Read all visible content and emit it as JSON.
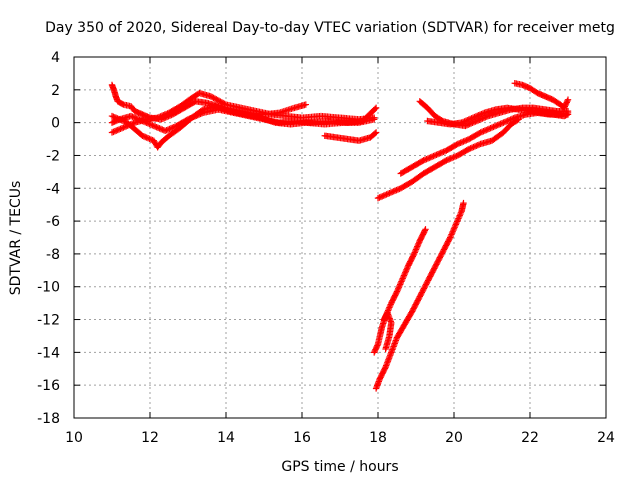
{
  "chart_data": {
    "type": "scatter",
    "title": "Day 350 of 2020, Sidereal Day-to-day VTEC variation (SDTVAR) for receiver metg",
    "xlabel": "GPS time / hours",
    "ylabel": "SDTVAR / TECUs",
    "xlim": [
      10,
      24
    ],
    "ylim": [
      -18,
      4
    ],
    "xticks": [
      10,
      12,
      14,
      16,
      18,
      20,
      22,
      24
    ],
    "yticks": [
      -18,
      -16,
      -14,
      -12,
      -10,
      -8,
      -6,
      -4,
      -2,
      0,
      2,
      4
    ],
    "grid": true,
    "marker": "+",
    "color": "#ff0000",
    "series": [
      {
        "points": [
          [
            11.0,
            2.3
          ],
          [
            11.05,
            2.0
          ],
          [
            11.1,
            1.6
          ],
          [
            11.15,
            1.3
          ],
          [
            11.3,
            1.1
          ],
          [
            11.5,
            1.0
          ],
          [
            11.6,
            0.7
          ],
          [
            11.8,
            0.5
          ],
          [
            12.0,
            0.3
          ],
          [
            12.3,
            0.2
          ],
          [
            12.6,
            0.5
          ],
          [
            12.9,
            0.9
          ],
          [
            13.2,
            1.3
          ],
          [
            13.5,
            1.2
          ],
          [
            13.8,
            1.0
          ],
          [
            14.2,
            0.8
          ],
          [
            14.6,
            0.6
          ],
          [
            15.0,
            0.5
          ],
          [
            15.4,
            0.6
          ],
          [
            15.8,
            0.9
          ],
          [
            16.1,
            1.1
          ]
        ]
      },
      {
        "points": [
          [
            11.0,
            -0.6
          ],
          [
            11.3,
            -0.3
          ],
          [
            11.6,
            0.0
          ],
          [
            11.9,
            0.2
          ],
          [
            12.2,
            0.3
          ],
          [
            12.5,
            0.6
          ],
          [
            12.8,
            1.0
          ],
          [
            13.1,
            1.5
          ],
          [
            13.3,
            1.8
          ],
          [
            13.6,
            1.6
          ],
          [
            14.0,
            1.1
          ],
          [
            14.4,
            0.9
          ],
          [
            14.8,
            0.7
          ],
          [
            15.2,
            0.5
          ],
          [
            15.6,
            0.4
          ],
          [
            16.0,
            0.3
          ],
          [
            16.5,
            0.4
          ],
          [
            17.0,
            0.3
          ],
          [
            17.5,
            0.2
          ],
          [
            17.9,
            0.3
          ]
        ]
      },
      {
        "points": [
          [
            11.0,
            0.0
          ],
          [
            11.2,
            0.2
          ],
          [
            11.5,
            0.4
          ],
          [
            11.8,
            0.1
          ],
          [
            12.1,
            -0.2
          ],
          [
            12.4,
            -0.5
          ],
          [
            12.7,
            -0.2
          ],
          [
            13.0,
            0.2
          ],
          [
            13.4,
            0.6
          ],
          [
            13.8,
            0.8
          ],
          [
            14.2,
            0.6
          ],
          [
            14.6,
            0.4
          ],
          [
            15.0,
            0.2
          ],
          [
            15.4,
            0.0
          ],
          [
            15.8,
            0.1
          ],
          [
            16.2,
            0.0
          ],
          [
            16.7,
            0.1
          ],
          [
            17.2,
            0.0
          ],
          [
            17.6,
            0.1
          ],
          [
            17.95,
            0.9
          ]
        ]
      },
      {
        "points": [
          [
            11.0,
            0.4
          ],
          [
            11.4,
            0.0
          ],
          [
            11.8,
            -0.8
          ],
          [
            12.1,
            -1.1
          ],
          [
            12.2,
            -1.5
          ],
          [
            12.3,
            -1.2
          ],
          [
            12.5,
            -0.8
          ],
          [
            12.8,
            -0.3
          ],
          [
            13.1,
            0.3
          ],
          [
            13.4,
            0.8
          ],
          [
            13.7,
            1.0
          ],
          [
            14.1,
            0.7
          ],
          [
            14.5,
            0.5
          ],
          [
            14.9,
            0.3
          ],
          [
            15.3,
            0.0
          ],
          [
            15.7,
            -0.1
          ],
          [
            16.1,
            0.0
          ],
          [
            16.6,
            -0.1
          ],
          [
            17.1,
            0.0
          ],
          [
            17.5,
            0.0
          ],
          [
            17.9,
            0.2
          ]
        ]
      },
      {
        "points": [
          [
            16.6,
            -0.8
          ],
          [
            16.9,
            -0.9
          ],
          [
            17.2,
            -1.0
          ],
          [
            17.5,
            -1.1
          ],
          [
            17.8,
            -0.9
          ],
          [
            17.95,
            -0.6
          ]
        ]
      },
      {
        "points": [
          [
            18.0,
            -4.6
          ],
          [
            18.3,
            -4.3
          ],
          [
            18.6,
            -4.0
          ],
          [
            18.9,
            -3.6
          ],
          [
            19.2,
            -3.1
          ],
          [
            19.5,
            -2.7
          ],
          [
            19.8,
            -2.3
          ],
          [
            20.1,
            -2.0
          ],
          [
            20.4,
            -1.6
          ],
          [
            20.7,
            -1.3
          ],
          [
            21.0,
            -1.1
          ],
          [
            21.3,
            -0.6
          ],
          [
            21.5,
            -0.1
          ],
          [
            21.7,
            0.2
          ]
        ]
      },
      {
        "points": [
          [
            18.6,
            -3.1
          ],
          [
            18.9,
            -2.7
          ],
          [
            19.2,
            -2.3
          ],
          [
            19.5,
            -2.0
          ],
          [
            19.8,
            -1.7
          ],
          [
            20.1,
            -1.3
          ],
          [
            20.4,
            -1.0
          ],
          [
            20.7,
            -0.6
          ],
          [
            21.0,
            -0.3
          ],
          [
            21.3,
            0.0
          ],
          [
            21.6,
            0.3
          ],
          [
            21.9,
            0.5
          ],
          [
            22.2,
            0.6
          ],
          [
            22.5,
            0.5
          ],
          [
            22.8,
            0.5
          ],
          [
            23.0,
            0.6
          ]
        ]
      },
      {
        "points": [
          [
            19.1,
            1.3
          ],
          [
            19.3,
            0.9
          ],
          [
            19.5,
            0.4
          ],
          [
            19.7,
            0.1
          ],
          [
            20.0,
            -0.1
          ],
          [
            20.3,
            -0.2
          ],
          [
            20.6,
            0.1
          ],
          [
            20.9,
            0.4
          ],
          [
            21.2,
            0.6
          ],
          [
            21.5,
            0.8
          ],
          [
            21.8,
            0.9
          ],
          [
            22.1,
            0.9
          ],
          [
            22.4,
            0.8
          ],
          [
            22.7,
            0.7
          ],
          [
            23.0,
            0.7
          ]
        ]
      },
      {
        "points": [
          [
            21.6,
            2.4
          ],
          [
            21.8,
            2.3
          ],
          [
            22.0,
            2.1
          ],
          [
            22.2,
            1.8
          ],
          [
            22.4,
            1.6
          ],
          [
            22.6,
            1.4
          ],
          [
            22.8,
            1.1
          ],
          [
            22.9,
            0.9
          ],
          [
            23.0,
            1.4
          ]
        ]
      },
      {
        "points": [
          [
            19.3,
            0.1
          ],
          [
            19.6,
            0.0
          ],
          [
            19.9,
            -0.1
          ],
          [
            20.2,
            0.0
          ],
          [
            20.5,
            0.3
          ],
          [
            20.8,
            0.6
          ],
          [
            21.1,
            0.8
          ],
          [
            21.4,
            0.9
          ],
          [
            21.7,
            0.8
          ],
          [
            22.0,
            0.7
          ],
          [
            22.3,
            0.6
          ],
          [
            22.6,
            0.5
          ],
          [
            22.9,
            0.4
          ],
          [
            23.0,
            0.5
          ]
        ]
      },
      {
        "points": [
          [
            17.9,
            -14.0
          ],
          [
            18.0,
            -13.5
          ],
          [
            18.1,
            -12.5
          ],
          [
            18.2,
            -11.8
          ],
          [
            18.35,
            -11.0
          ],
          [
            18.5,
            -10.3
          ],
          [
            18.65,
            -9.5
          ],
          [
            18.8,
            -8.7
          ],
          [
            18.95,
            -8.0
          ],
          [
            19.1,
            -7.2
          ],
          [
            19.25,
            -6.5
          ]
        ]
      },
      {
        "points": [
          [
            17.95,
            -16.2
          ],
          [
            18.05,
            -15.6
          ],
          [
            18.2,
            -14.9
          ],
          [
            18.35,
            -14.0
          ],
          [
            18.5,
            -13.1
          ],
          [
            18.7,
            -12.3
          ],
          [
            18.9,
            -11.5
          ],
          [
            19.1,
            -10.6
          ],
          [
            19.3,
            -9.7
          ],
          [
            19.5,
            -8.8
          ],
          [
            19.7,
            -7.9
          ],
          [
            19.9,
            -7.0
          ],
          [
            20.05,
            -6.2
          ],
          [
            20.2,
            -5.4
          ],
          [
            20.25,
            -4.9
          ]
        ]
      },
      {
        "points": [
          [
            18.15,
            -12.0
          ],
          [
            18.25,
            -11.6
          ],
          [
            18.35,
            -12.2
          ],
          [
            18.3,
            -13.0
          ],
          [
            18.2,
            -13.8
          ]
        ]
      }
    ]
  }
}
